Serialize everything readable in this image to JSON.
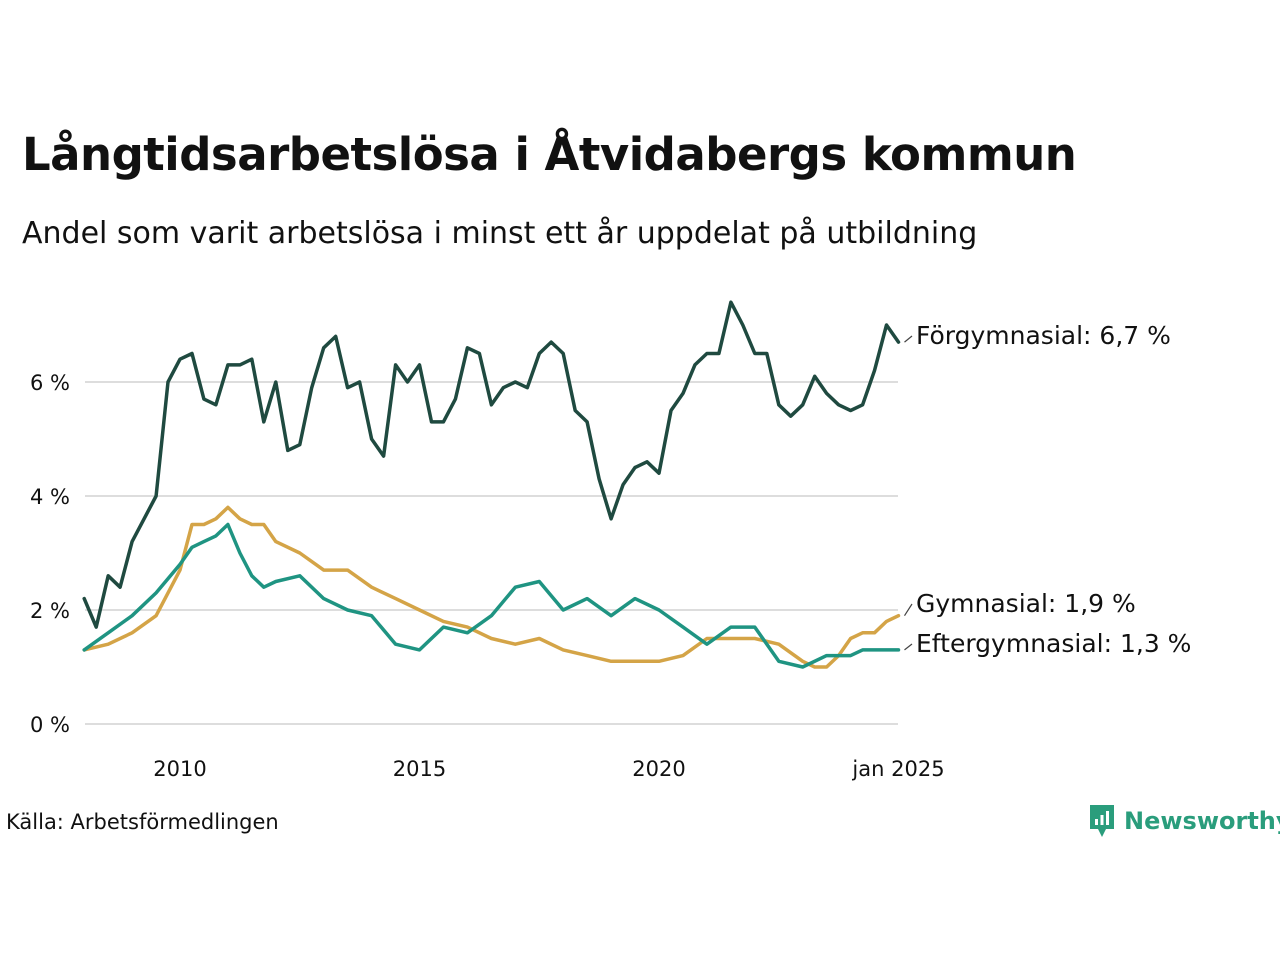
{
  "title": "Långtidsarbetslösa i Åtvidabergs kommun",
  "subtitle": "Andel som varit arbetslösa i minst ett år uppdelat på utbildning",
  "source": "Källa: Arbetsförmedlingen",
  "brand": "Newsworthy",
  "colors": {
    "forgymnasial": "#1f4a40",
    "gymnasial": "#d4a447",
    "eftergymnasial": "#1f9482",
    "grid": "#dddddd",
    "brand": "#2a9d7c"
  },
  "chart_data": {
    "type": "line",
    "title": "Långtidsarbetslösa i Åtvidabergs kommun",
    "xlabel": "",
    "ylabel": "",
    "xlim": [
      2008.0,
      2025.0
    ],
    "ylim": [
      0,
      7.5
    ],
    "y_ticks": [
      0,
      2,
      4,
      6
    ],
    "y_tick_labels": [
      "0 %",
      "2 %",
      "4 %",
      "6 %"
    ],
    "x_ticks": [
      2010,
      2015,
      2020,
      2025
    ],
    "x_tick_labels": [
      "2010",
      "2015",
      "2020",
      "jan 2025"
    ],
    "grid": true,
    "series": [
      {
        "name": "Förgymnasial",
        "end_label": "Förgymnasial: 6,7 %",
        "x": [
          2008.0,
          2008.25,
          2008.5,
          2008.75,
          2009.0,
          2009.25,
          2009.5,
          2009.75,
          2010.0,
          2010.25,
          2010.5,
          2010.75,
          2011.0,
          2011.25,
          2011.5,
          2011.75,
          2012.0,
          2012.25,
          2012.5,
          2012.75,
          2013.0,
          2013.25,
          2013.5,
          2013.75,
          2014.0,
          2014.25,
          2014.5,
          2014.75,
          2015.0,
          2015.25,
          2015.5,
          2015.75,
          2016.0,
          2016.25,
          2016.5,
          2016.75,
          2017.0,
          2017.25,
          2017.5,
          2017.75,
          2018.0,
          2018.25,
          2018.5,
          2018.75,
          2019.0,
          2019.25,
          2019.5,
          2019.75,
          2020.0,
          2020.25,
          2020.5,
          2020.75,
          2021.0,
          2021.25,
          2021.5,
          2021.75,
          2022.0,
          2022.25,
          2022.5,
          2022.75,
          2023.0,
          2023.25,
          2023.5,
          2023.75,
          2024.0,
          2024.25,
          2024.5,
          2024.75,
          2025.0
        ],
        "values": [
          2.2,
          1.7,
          2.6,
          2.4,
          3.2,
          3.6,
          4.0,
          6.0,
          6.4,
          6.5,
          5.7,
          5.6,
          6.3,
          6.3,
          6.4,
          5.3,
          6.0,
          4.8,
          4.9,
          5.9,
          6.6,
          6.8,
          5.9,
          6.0,
          5.0,
          4.7,
          6.3,
          6.0,
          6.3,
          5.3,
          5.3,
          5.7,
          6.6,
          6.5,
          5.6,
          5.9,
          6.0,
          5.9,
          6.5,
          6.7,
          6.5,
          5.5,
          5.3,
          4.3,
          3.6,
          4.2,
          4.5,
          4.6,
          4.4,
          5.5,
          5.8,
          6.3,
          6.5,
          6.5,
          7.4,
          7.0,
          6.5,
          6.5,
          5.6,
          5.4,
          5.6,
          6.1,
          5.8,
          5.6,
          5.5,
          5.6,
          6.2,
          7.0,
          6.7
        ]
      },
      {
        "name": "Gymnasial",
        "end_label": "Gymnasial: 1,9 %",
        "x": [
          2008.0,
          2008.5,
          2009.0,
          2009.5,
          2010.0,
          2010.25,
          2010.5,
          2010.75,
          2011.0,
          2011.25,
          2011.5,
          2011.75,
          2012.0,
          2012.5,
          2013.0,
          2013.5,
          2014.0,
          2014.5,
          2015.0,
          2015.5,
          2016.0,
          2016.5,
          2017.0,
          2017.5,
          2018.0,
          2018.5,
          2019.0,
          2019.5,
          2020.0,
          2020.5,
          2021.0,
          2021.5,
          2022.0,
          2022.5,
          2023.0,
          2023.25,
          2023.5,
          2023.75,
          2024.0,
          2024.25,
          2024.5,
          2024.75,
          2025.0
        ],
        "values": [
          1.3,
          1.4,
          1.6,
          1.9,
          2.7,
          3.5,
          3.5,
          3.6,
          3.8,
          3.6,
          3.5,
          3.5,
          3.2,
          3.0,
          2.7,
          2.7,
          2.4,
          2.2,
          2.0,
          1.8,
          1.7,
          1.5,
          1.4,
          1.5,
          1.3,
          1.2,
          1.1,
          1.1,
          1.1,
          1.2,
          1.5,
          1.5,
          1.5,
          1.4,
          1.1,
          1.0,
          1.0,
          1.2,
          1.5,
          1.6,
          1.6,
          1.8,
          1.9
        ]
      },
      {
        "name": "Eftergymnasial",
        "end_label": "Eftergymnasial: 1,3 %",
        "x": [
          2008.0,
          2008.5,
          2009.0,
          2009.5,
          2010.0,
          2010.25,
          2010.5,
          2010.75,
          2011.0,
          2011.25,
          2011.5,
          2011.75,
          2012.0,
          2012.5,
          2013.0,
          2013.5,
          2014.0,
          2014.5,
          2015.0,
          2015.5,
          2016.0,
          2016.5,
          2017.0,
          2017.5,
          2018.0,
          2018.5,
          2019.0,
          2019.5,
          2020.0,
          2020.5,
          2021.0,
          2021.5,
          2022.0,
          2022.5,
          2023.0,
          2023.5,
          2024.0,
          2024.25,
          2024.5,
          2024.75,
          2025.0
        ],
        "values": [
          1.3,
          1.6,
          1.9,
          2.3,
          2.8,
          3.1,
          3.2,
          3.3,
          3.5,
          3.0,
          2.6,
          2.4,
          2.5,
          2.6,
          2.2,
          2.0,
          1.9,
          1.4,
          1.3,
          1.7,
          1.6,
          1.9,
          2.4,
          2.5,
          2.0,
          2.2,
          1.9,
          2.2,
          2.0,
          1.7,
          1.4,
          1.7,
          1.7,
          1.1,
          1.0,
          1.2,
          1.2,
          1.3,
          1.3,
          1.3,
          1.3
        ]
      }
    ]
  }
}
